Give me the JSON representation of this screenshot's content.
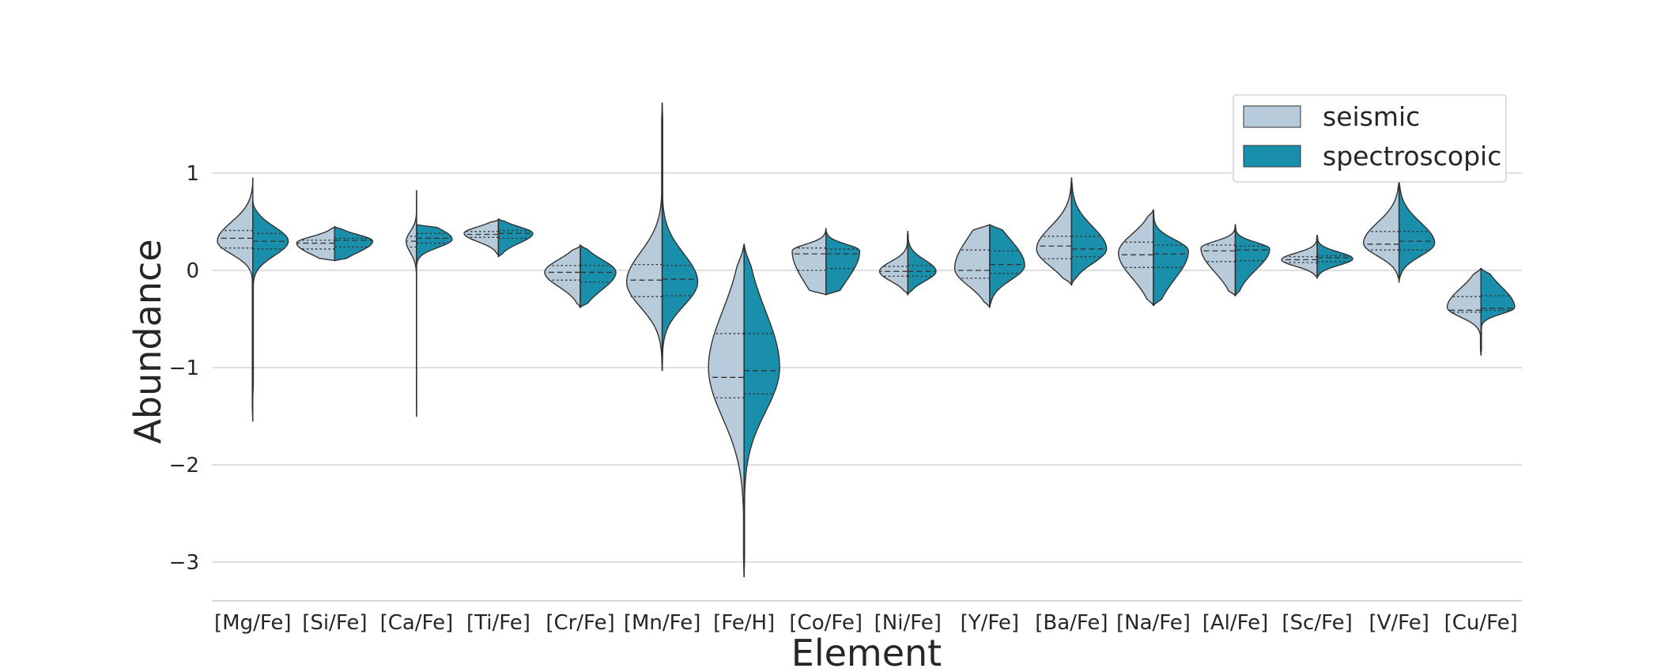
{
  "chart_data": {
    "type": "violin",
    "split": true,
    "xlabel": "Element",
    "ylabel": "Abundance",
    "ylim": [
      -3.4,
      2.0
    ],
    "yticks": [
      1,
      0,
      -1,
      -2,
      -3
    ],
    "ytick_labels": [
      "1",
      "0",
      "−1",
      "−2",
      "−3"
    ],
    "grid": true,
    "legend_position": "top-right",
    "categories": [
      "[Mg/Fe]",
      "[Si/Fe]",
      "[Ca/Fe]",
      "[Ti/Fe]",
      "[Cr/Fe]",
      "[Mn/Fe]",
      "[Fe/H]",
      "[Co/Fe]",
      "[Ni/Fe]",
      "[Y/Fe]",
      "[Ba/Fe]",
      "[Na/Fe]",
      "[Al/Fe]",
      "[Sc/Fe]",
      "[V/Fe]",
      "[Cu/Fe]"
    ],
    "series": [
      {
        "name": "seismic",
        "color": "#b8cbdb",
        "violins": [
          {
            "min": -1.55,
            "max": 0.95,
            "q1": 0.23,
            "median": 0.33,
            "q3": 0.41,
            "w": 0.58,
            "mode": 0.3
          },
          {
            "min": 0.1,
            "max": 0.45,
            "q1": 0.22,
            "median": 0.28,
            "q3": 0.31,
            "w": 0.62,
            "mode": 0.28
          },
          {
            "min": -1.5,
            "max": 0.82,
            "q1": 0.24,
            "median": 0.3,
            "q3": 0.35,
            "w": 0.17,
            "mode": 0.3
          },
          {
            "min": 0.15,
            "max": 0.52,
            "q1": 0.34,
            "median": 0.37,
            "q3": 0.4,
            "w": 0.56,
            "mode": 0.38
          },
          {
            "min": -0.38,
            "max": 0.25,
            "q1": -0.1,
            "median": -0.02,
            "q3": 0.05,
            "w": 0.58,
            "mode": -0.02
          },
          {
            "min": -1.03,
            "max": 1.72,
            "q1": -0.27,
            "median": -0.1,
            "q3": 0.06,
            "w": 0.58,
            "mode": -0.12
          },
          {
            "min": -3.15,
            "max": 0.27,
            "q1": -1.31,
            "median": -1.1,
            "q3": -0.65,
            "w": 0.58,
            "mode": -1.0
          },
          {
            "min": -0.25,
            "max": 0.43,
            "q1": 0.0,
            "median": 0.17,
            "q3": 0.23,
            "w": 0.55,
            "mode": 0.2
          },
          {
            "min": -0.25,
            "max": 0.4,
            "q1": -0.06,
            "median": -0.01,
            "q3": 0.04,
            "w": 0.46,
            "mode": -0.01
          },
          {
            "min": -0.38,
            "max": 0.47,
            "q1": -0.08,
            "median": 0.0,
            "q3": 0.21,
            "w": 0.57,
            "mode": 0.02
          },
          {
            "min": -0.15,
            "max": 0.95,
            "q1": 0.12,
            "median": 0.25,
            "q3": 0.35,
            "w": 0.57,
            "mode": 0.22
          },
          {
            "min": -0.36,
            "max": 0.62,
            "q1": 0.03,
            "median": 0.16,
            "q3": 0.29,
            "w": 0.57,
            "mode": 0.18
          },
          {
            "min": -0.26,
            "max": 0.47,
            "q1": 0.09,
            "median": 0.2,
            "q3": 0.26,
            "w": 0.56,
            "mode": 0.23
          },
          {
            "min": -0.08,
            "max": 0.36,
            "q1": 0.08,
            "median": 0.11,
            "q3": 0.14,
            "w": 0.58,
            "mode": 0.11
          },
          {
            "min": -0.12,
            "max": 0.93,
            "q1": 0.21,
            "median": 0.27,
            "q3": 0.4,
            "w": 0.58,
            "mode": 0.28
          },
          {
            "min": -0.87,
            "max": 0.02,
            "q1": -0.43,
            "median": -0.41,
            "q3": -0.27,
            "w": 0.55,
            "mode": -0.38
          }
        ]
      },
      {
        "name": "spectroscopic",
        "color": "#1a8fab",
        "violins": [
          {
            "min": -1.3,
            "max": 0.73,
            "q1": 0.22,
            "median": 0.3,
            "q3": 0.38,
            "w": 0.58,
            "mode": 0.3
          },
          {
            "min": 0.1,
            "max": 0.45,
            "q1": 0.24,
            "median": 0.31,
            "q3": 0.33,
            "w": 0.62,
            "mode": 0.3
          },
          {
            "min": 0.05,
            "max": 0.47,
            "q1": 0.28,
            "median": 0.33,
            "q3": 0.38,
            "w": 0.58,
            "mode": 0.32
          },
          {
            "min": 0.14,
            "max": 0.53,
            "q1": 0.33,
            "median": 0.38,
            "q3": 0.41,
            "w": 0.56,
            "mode": 0.38
          },
          {
            "min": -0.38,
            "max": 0.26,
            "q1": -0.12,
            "median": -0.02,
            "q3": 0.05,
            "w": 0.58,
            "mode": -0.02
          },
          {
            "min": -1.03,
            "max": 1.72,
            "q1": -0.26,
            "median": -0.09,
            "q3": 0.05,
            "w": 0.58,
            "mode": -0.12
          },
          {
            "min": -3.15,
            "max": 0.27,
            "q1": -1.27,
            "median": -1.03,
            "q3": -0.65,
            "w": 0.58,
            "mode": -1.0
          },
          {
            "min": -0.25,
            "max": 0.43,
            "q1": 0.02,
            "median": 0.17,
            "q3": 0.22,
            "w": 0.55,
            "mode": 0.2
          },
          {
            "min": -0.25,
            "max": 0.4,
            "q1": -0.06,
            "median": -0.01,
            "q3": 0.05,
            "w": 0.46,
            "mode": -0.01
          },
          {
            "min": -0.38,
            "max": 0.47,
            "q1": -0.03,
            "median": 0.06,
            "q3": 0.2,
            "w": 0.57,
            "mode": 0.05
          },
          {
            "min": -0.15,
            "max": 0.95,
            "q1": 0.14,
            "median": 0.22,
            "q3": 0.35,
            "w": 0.57,
            "mode": 0.22
          },
          {
            "min": -0.36,
            "max": 0.62,
            "q1": 0.03,
            "median": 0.17,
            "q3": 0.26,
            "w": 0.57,
            "mode": 0.2
          },
          {
            "min": -0.26,
            "max": 0.47,
            "q1": 0.1,
            "median": 0.21,
            "q3": 0.25,
            "w": 0.56,
            "mode": 0.22
          },
          {
            "min": -0.08,
            "max": 0.36,
            "q1": 0.09,
            "median": 0.13,
            "q3": 0.15,
            "w": 0.58,
            "mode": 0.12
          },
          {
            "min": -0.12,
            "max": 0.93,
            "q1": 0.21,
            "median": 0.3,
            "q3": 0.4,
            "w": 0.58,
            "mode": 0.28
          },
          {
            "min": -0.87,
            "max": 0.02,
            "q1": -0.41,
            "median": -0.39,
            "q3": -0.26,
            "w": 0.55,
            "mode": -0.38
          }
        ]
      }
    ]
  }
}
